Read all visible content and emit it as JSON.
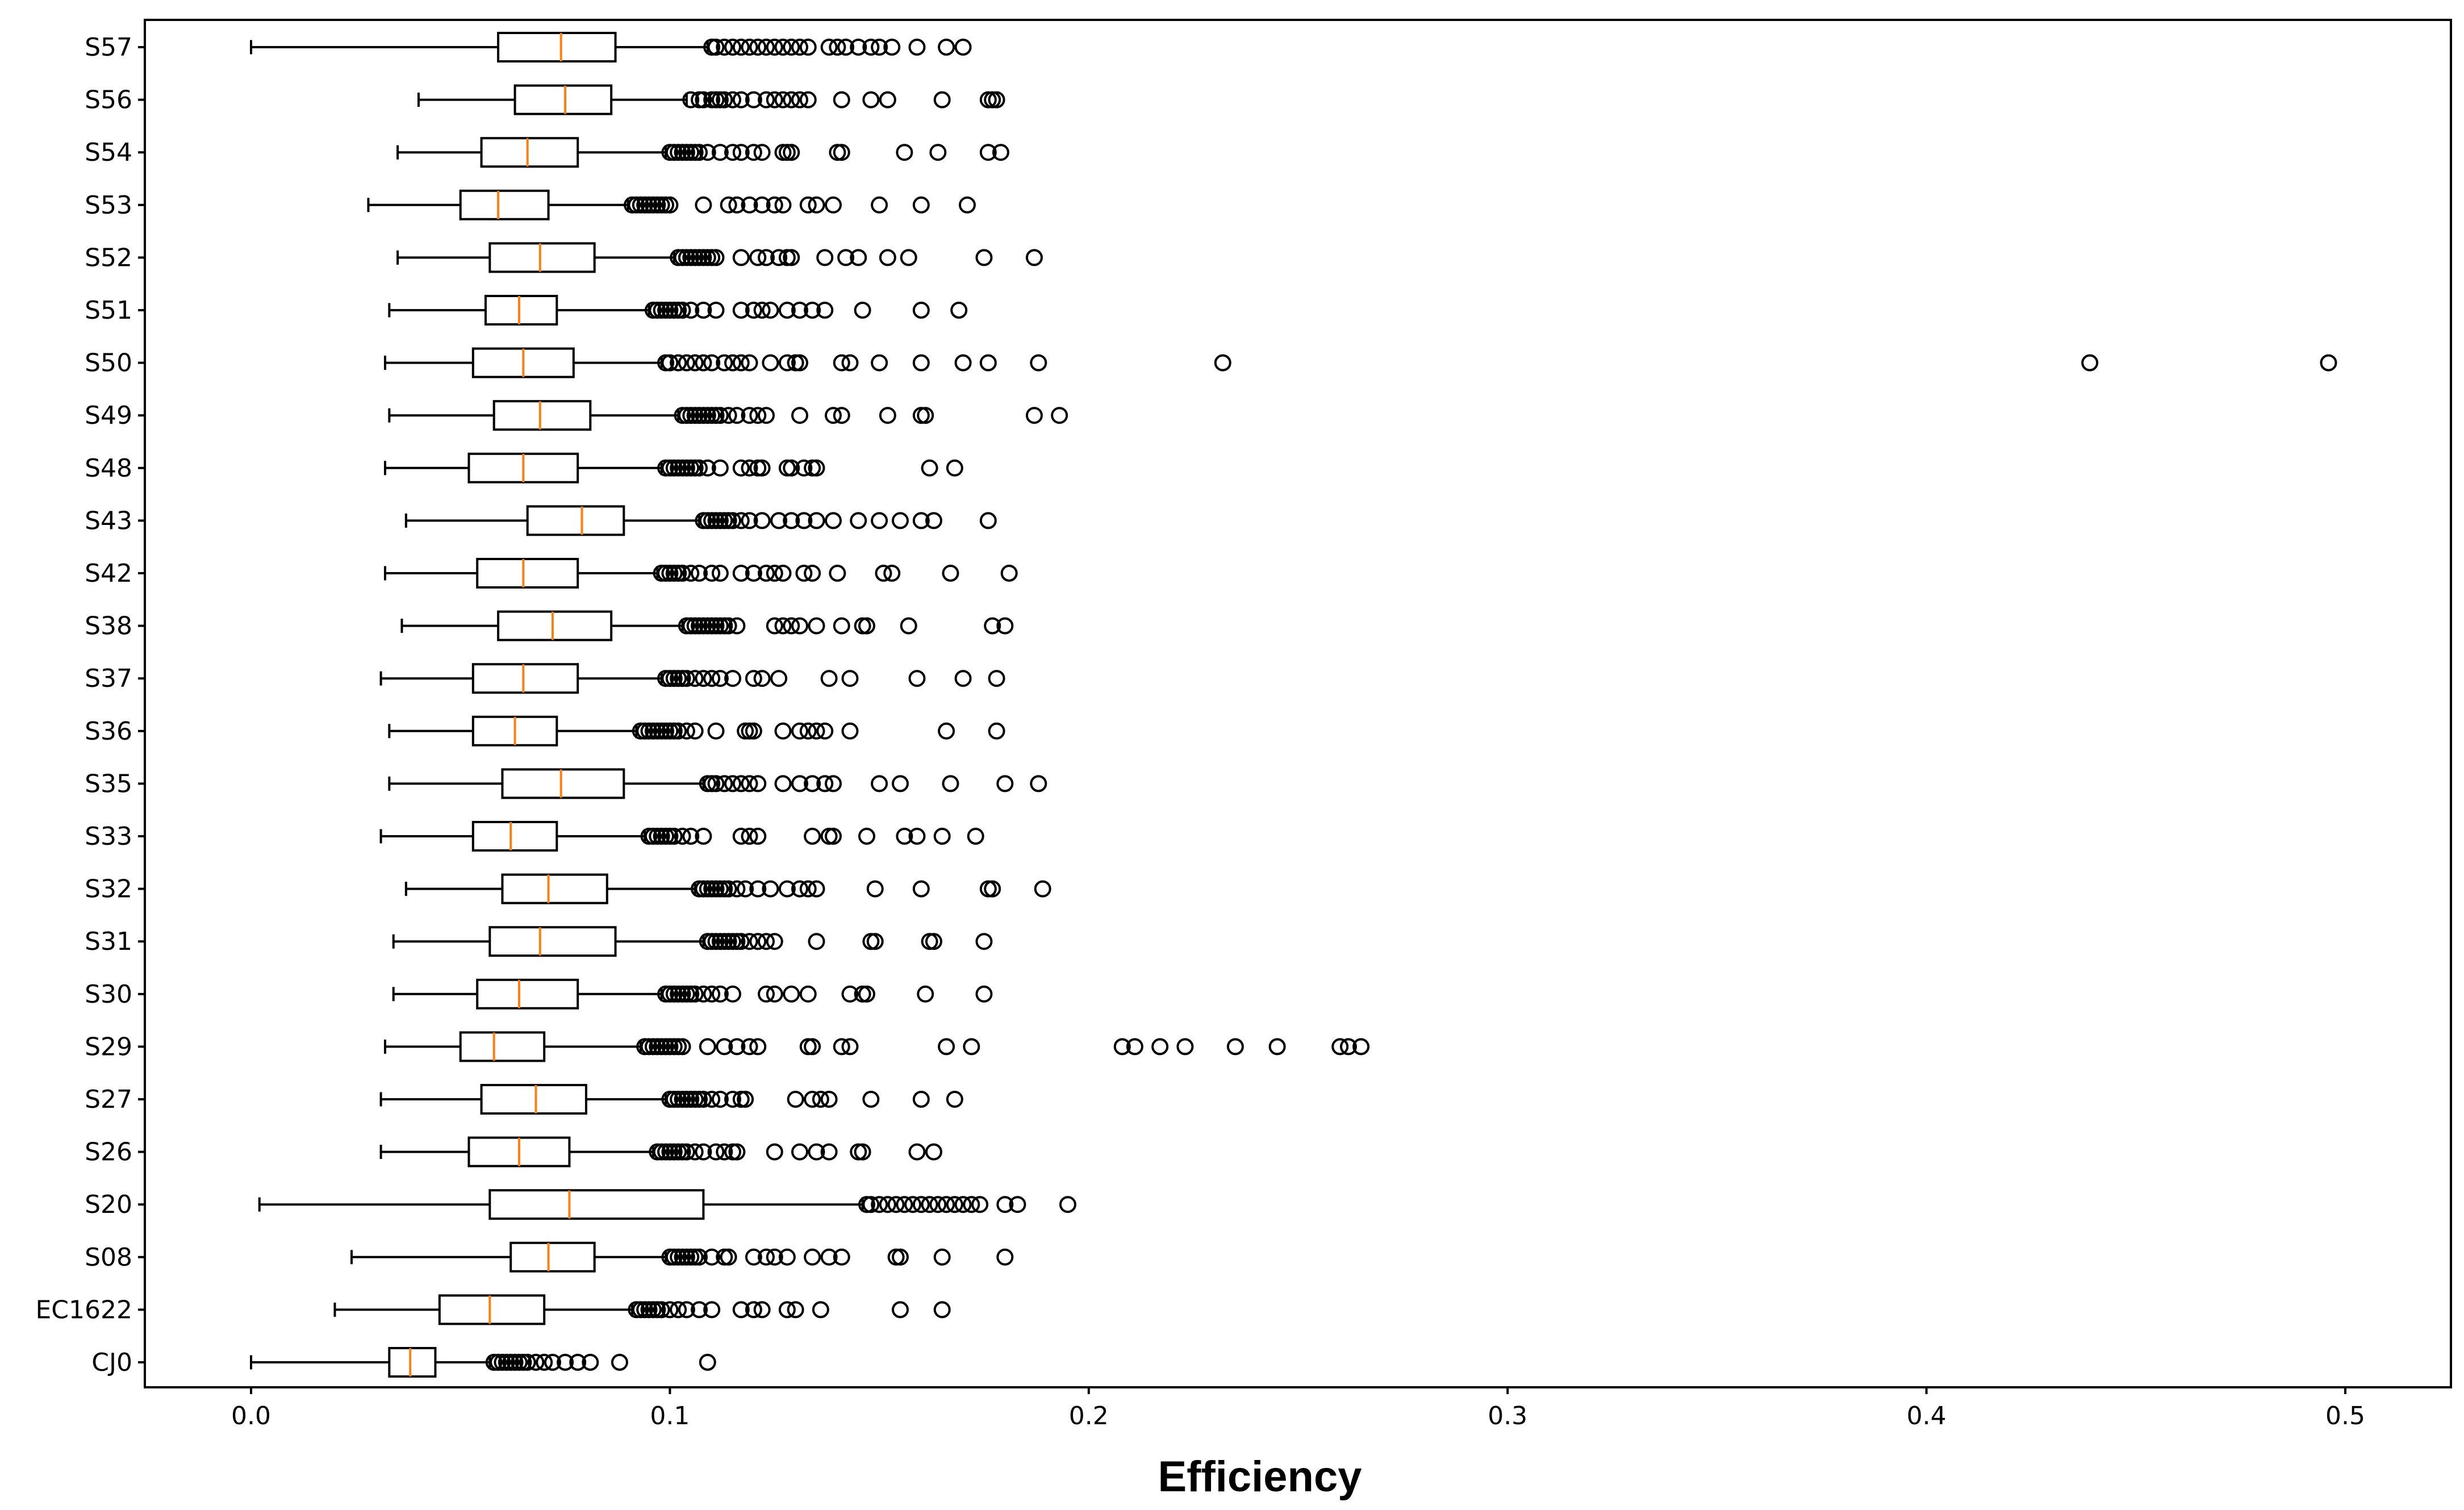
{
  "chart_data": {
    "type": "boxplot",
    "orientation": "horizontal",
    "title": "",
    "xlabel": "Efficiency",
    "ylabel": "",
    "xlim": [
      -0.025,
      0.523
    ],
    "xticks": [
      0.0,
      0.1,
      0.2,
      0.3,
      0.4,
      0.5
    ],
    "xtick_labels": [
      "0.0",
      "0.1",
      "0.2",
      "0.3",
      "0.4",
      "0.5"
    ],
    "grid": false,
    "colors": {
      "box": "#000000",
      "median": "#ff7f0e",
      "flier": "#000000",
      "background": "#ffffff"
    },
    "categories": [
      "S57",
      "S56",
      "S54",
      "S53",
      "S52",
      "S51",
      "S50",
      "S49",
      "S48",
      "S43",
      "S42",
      "S38",
      "S37",
      "S36",
      "S35",
      "S33",
      "S32",
      "S31",
      "S30",
      "S29",
      "S27",
      "S26",
      "S20",
      "S08",
      "EC1622",
      "CJ0"
    ],
    "boxes": [
      {
        "label": "S57",
        "whisker_low": 0.0,
        "q1": 0.059,
        "median": 0.074,
        "q3": 0.087,
        "whisker_high": 0.109,
        "fliers": [
          0.11,
          0.111,
          0.113,
          0.115,
          0.117,
          0.119,
          0.121,
          0.123,
          0.125,
          0.127,
          0.129,
          0.131,
          0.133,
          0.138,
          0.14,
          0.142,
          0.145,
          0.148,
          0.15,
          0.153,
          0.159,
          0.166,
          0.17
        ]
      },
      {
        "label": "S56",
        "whisker_low": 0.04,
        "q1": 0.063,
        "median": 0.075,
        "q3": 0.086,
        "whisker_high": 0.104,
        "fliers": [
          0.105,
          0.107,
          0.108,
          0.11,
          0.111,
          0.112,
          0.113,
          0.115,
          0.117,
          0.12,
          0.123,
          0.125,
          0.127,
          0.129,
          0.131,
          0.133,
          0.141,
          0.148,
          0.152,
          0.165,
          0.176,
          0.177,
          0.178
        ]
      },
      {
        "label": "S54",
        "whisker_low": 0.035,
        "q1": 0.055,
        "median": 0.066,
        "q3": 0.078,
        "whisker_high": 0.099,
        "fliers": [
          0.1,
          0.101,
          0.102,
          0.103,
          0.104,
          0.105,
          0.106,
          0.107,
          0.109,
          0.112,
          0.115,
          0.117,
          0.12,
          0.122,
          0.127,
          0.128,
          0.129,
          0.14,
          0.141,
          0.156,
          0.164,
          0.176,
          0.179
        ]
      },
      {
        "label": "S53",
        "whisker_low": 0.028,
        "q1": 0.05,
        "median": 0.059,
        "q3": 0.071,
        "whisker_high": 0.09,
        "fliers": [
          0.091,
          0.092,
          0.093,
          0.094,
          0.095,
          0.096,
          0.097,
          0.098,
          0.099,
          0.1,
          0.108,
          0.114,
          0.116,
          0.119,
          0.122,
          0.125,
          0.127,
          0.133,
          0.135,
          0.139,
          0.15,
          0.16,
          0.171
        ]
      },
      {
        "label": "S52",
        "whisker_low": 0.035,
        "q1": 0.057,
        "median": 0.069,
        "q3": 0.082,
        "whisker_high": 0.101,
        "fliers": [
          0.102,
          0.103,
          0.104,
          0.105,
          0.106,
          0.107,
          0.108,
          0.109,
          0.11,
          0.111,
          0.117,
          0.121,
          0.123,
          0.126,
          0.128,
          0.129,
          0.137,
          0.142,
          0.145,
          0.152,
          0.157,
          0.175,
          0.187
        ]
      },
      {
        "label": "S51",
        "whisker_low": 0.033,
        "q1": 0.056,
        "median": 0.064,
        "q3": 0.073,
        "whisker_high": 0.095,
        "fliers": [
          0.096,
          0.097,
          0.098,
          0.099,
          0.1,
          0.101,
          0.102,
          0.103,
          0.105,
          0.108,
          0.111,
          0.117,
          0.12,
          0.122,
          0.124,
          0.128,
          0.131,
          0.134,
          0.137,
          0.146,
          0.16,
          0.169
        ]
      },
      {
        "label": "S50",
        "whisker_low": 0.032,
        "q1": 0.053,
        "median": 0.065,
        "q3": 0.077,
        "whisker_high": 0.098,
        "fliers": [
          0.099,
          0.1,
          0.102,
          0.104,
          0.106,
          0.108,
          0.11,
          0.113,
          0.115,
          0.117,
          0.119,
          0.124,
          0.128,
          0.13,
          0.131,
          0.141,
          0.143,
          0.15,
          0.16,
          0.17,
          0.176,
          0.188,
          0.232,
          0.439,
          0.496
        ]
      },
      {
        "label": "S49",
        "whisker_low": 0.033,
        "q1": 0.058,
        "median": 0.069,
        "q3": 0.081,
        "whisker_high": 0.102,
        "fliers": [
          0.103,
          0.104,
          0.105,
          0.106,
          0.107,
          0.108,
          0.109,
          0.11,
          0.111,
          0.112,
          0.114,
          0.116,
          0.119,
          0.121,
          0.123,
          0.131,
          0.139,
          0.141,
          0.152,
          0.16,
          0.161,
          0.187,
          0.193
        ]
      },
      {
        "label": "S48",
        "whisker_low": 0.032,
        "q1": 0.052,
        "median": 0.065,
        "q3": 0.078,
        "whisker_high": 0.098,
        "fliers": [
          0.099,
          0.1,
          0.101,
          0.102,
          0.103,
          0.104,
          0.105,
          0.106,
          0.107,
          0.109,
          0.112,
          0.117,
          0.119,
          0.121,
          0.122,
          0.128,
          0.129,
          0.132,
          0.134,
          0.135,
          0.162,
          0.168
        ]
      },
      {
        "label": "S43",
        "whisker_low": 0.037,
        "q1": 0.066,
        "median": 0.079,
        "q3": 0.089,
        "whisker_high": 0.107,
        "fliers": [
          0.108,
          0.109,
          0.11,
          0.111,
          0.112,
          0.113,
          0.114,
          0.115,
          0.117,
          0.119,
          0.122,
          0.126,
          0.129,
          0.132,
          0.135,
          0.139,
          0.145,
          0.15,
          0.155,
          0.16,
          0.163,
          0.176
        ]
      },
      {
        "label": "S42",
        "whisker_low": 0.032,
        "q1": 0.054,
        "median": 0.065,
        "q3": 0.078,
        "whisker_high": 0.097,
        "fliers": [
          0.098,
          0.099,
          0.1,
          0.101,
          0.102,
          0.103,
          0.105,
          0.107,
          0.11,
          0.112,
          0.117,
          0.12,
          0.123,
          0.125,
          0.127,
          0.132,
          0.134,
          0.14,
          0.151,
          0.153,
          0.167,
          0.181
        ]
      },
      {
        "label": "S38",
        "whisker_low": 0.036,
        "q1": 0.059,
        "median": 0.072,
        "q3": 0.086,
        "whisker_high": 0.103,
        "fliers": [
          0.104,
          0.105,
          0.106,
          0.107,
          0.108,
          0.109,
          0.11,
          0.111,
          0.112,
          0.113,
          0.114,
          0.116,
          0.125,
          0.127,
          0.129,
          0.131,
          0.135,
          0.141,
          0.146,
          0.147,
          0.157,
          0.177,
          0.18
        ]
      },
      {
        "label": "S37",
        "whisker_low": 0.031,
        "q1": 0.053,
        "median": 0.065,
        "q3": 0.078,
        "whisker_high": 0.098,
        "fliers": [
          0.099,
          0.1,
          0.101,
          0.102,
          0.103,
          0.104,
          0.106,
          0.108,
          0.11,
          0.112,
          0.115,
          0.12,
          0.122,
          0.126,
          0.138,
          0.143,
          0.159,
          0.17,
          0.178
        ]
      },
      {
        "label": "S36",
        "whisker_low": 0.033,
        "q1": 0.053,
        "median": 0.063,
        "q3": 0.073,
        "whisker_high": 0.092,
        "fliers": [
          0.093,
          0.094,
          0.095,
          0.096,
          0.097,
          0.098,
          0.099,
          0.1,
          0.101,
          0.102,
          0.104,
          0.106,
          0.111,
          0.118,
          0.119,
          0.12,
          0.127,
          0.131,
          0.133,
          0.135,
          0.137,
          0.143,
          0.166,
          0.178
        ]
      },
      {
        "label": "S35",
        "whisker_low": 0.033,
        "q1": 0.06,
        "median": 0.074,
        "q3": 0.089,
        "whisker_high": 0.108,
        "fliers": [
          0.109,
          0.11,
          0.111,
          0.113,
          0.115,
          0.117,
          0.119,
          0.121,
          0.127,
          0.131,
          0.134,
          0.137,
          0.139,
          0.15,
          0.155,
          0.167,
          0.18,
          0.188
        ]
      },
      {
        "label": "S33",
        "whisker_low": 0.031,
        "q1": 0.053,
        "median": 0.062,
        "q3": 0.073,
        "whisker_high": 0.094,
        "fliers": [
          0.095,
          0.096,
          0.097,
          0.098,
          0.099,
          0.1,
          0.101,
          0.103,
          0.105,
          0.108,
          0.117,
          0.119,
          0.121,
          0.134,
          0.138,
          0.139,
          0.147,
          0.156,
          0.159,
          0.165,
          0.173
        ]
      },
      {
        "label": "S32",
        "whisker_low": 0.037,
        "q1": 0.06,
        "median": 0.071,
        "q3": 0.085,
        "whisker_high": 0.106,
        "fliers": [
          0.107,
          0.108,
          0.109,
          0.11,
          0.111,
          0.112,
          0.113,
          0.114,
          0.116,
          0.118,
          0.121,
          0.124,
          0.128,
          0.131,
          0.133,
          0.135,
          0.149,
          0.16,
          0.176,
          0.177,
          0.189
        ]
      },
      {
        "label": "S31",
        "whisker_low": 0.034,
        "q1": 0.057,
        "median": 0.069,
        "q3": 0.087,
        "whisker_high": 0.108,
        "fliers": [
          0.109,
          0.11,
          0.111,
          0.112,
          0.113,
          0.114,
          0.115,
          0.116,
          0.117,
          0.119,
          0.121,
          0.123,
          0.125,
          0.135,
          0.148,
          0.149,
          0.162,
          0.163,
          0.175
        ]
      },
      {
        "label": "S30",
        "whisker_low": 0.034,
        "q1": 0.054,
        "median": 0.064,
        "q3": 0.078,
        "whisker_high": 0.098,
        "fliers": [
          0.099,
          0.1,
          0.101,
          0.102,
          0.103,
          0.104,
          0.105,
          0.106,
          0.108,
          0.11,
          0.112,
          0.115,
          0.123,
          0.125,
          0.129,
          0.133,
          0.143,
          0.146,
          0.147,
          0.161,
          0.175
        ]
      },
      {
        "label": "S29",
        "whisker_low": 0.032,
        "q1": 0.05,
        "median": 0.058,
        "q3": 0.07,
        "whisker_high": 0.093,
        "fliers": [
          0.094,
          0.095,
          0.096,
          0.097,
          0.098,
          0.099,
          0.1,
          0.101,
          0.102,
          0.103,
          0.109,
          0.113,
          0.116,
          0.119,
          0.121,
          0.133,
          0.134,
          0.141,
          0.143,
          0.166,
          0.172,
          0.208,
          0.211,
          0.217,
          0.223,
          0.235,
          0.245,
          0.26,
          0.262,
          0.265
        ]
      },
      {
        "label": "S27",
        "whisker_low": 0.031,
        "q1": 0.055,
        "median": 0.068,
        "q3": 0.08,
        "whisker_high": 0.099,
        "fliers": [
          0.1,
          0.101,
          0.102,
          0.103,
          0.104,
          0.105,
          0.106,
          0.107,
          0.108,
          0.11,
          0.112,
          0.115,
          0.117,
          0.118,
          0.13,
          0.134,
          0.136,
          0.138,
          0.148,
          0.16,
          0.168
        ]
      },
      {
        "label": "S26",
        "whisker_low": 0.031,
        "q1": 0.052,
        "median": 0.064,
        "q3": 0.076,
        "whisker_high": 0.096,
        "fliers": [
          0.097,
          0.098,
          0.099,
          0.1,
          0.101,
          0.102,
          0.103,
          0.104,
          0.106,
          0.108,
          0.111,
          0.113,
          0.115,
          0.116,
          0.125,
          0.131,
          0.135,
          0.138,
          0.145,
          0.146,
          0.159,
          0.163
        ]
      },
      {
        "label": "S20",
        "whisker_low": 0.002,
        "q1": 0.057,
        "median": 0.076,
        "q3": 0.108,
        "whisker_high": 0.146,
        "fliers": [
          0.147,
          0.148,
          0.15,
          0.152,
          0.154,
          0.156,
          0.158,
          0.16,
          0.162,
          0.164,
          0.166,
          0.168,
          0.17,
          0.172,
          0.174,
          0.18,
          0.183,
          0.195
        ]
      },
      {
        "label": "S08",
        "whisker_low": 0.024,
        "q1": 0.062,
        "median": 0.071,
        "q3": 0.082,
        "whisker_high": 0.099,
        "fliers": [
          0.1,
          0.101,
          0.102,
          0.103,
          0.104,
          0.105,
          0.106,
          0.107,
          0.11,
          0.113,
          0.114,
          0.12,
          0.123,
          0.125,
          0.128,
          0.134,
          0.138,
          0.141,
          0.154,
          0.155,
          0.165,
          0.18
        ]
      },
      {
        "label": "EC1622",
        "whisker_low": 0.02,
        "q1": 0.045,
        "median": 0.057,
        "q3": 0.07,
        "whisker_high": 0.091,
        "fliers": [
          0.092,
          0.093,
          0.094,
          0.095,
          0.096,
          0.097,
          0.098,
          0.1,
          0.102,
          0.104,
          0.107,
          0.11,
          0.117,
          0.12,
          0.122,
          0.128,
          0.13,
          0.136,
          0.155,
          0.165
        ]
      },
      {
        "label": "CJ0",
        "whisker_low": 0.0,
        "q1": 0.033,
        "median": 0.038,
        "q3": 0.044,
        "whisker_high": 0.057,
        "fliers": [
          0.058,
          0.059,
          0.06,
          0.061,
          0.062,
          0.063,
          0.064,
          0.065,
          0.066,
          0.068,
          0.07,
          0.072,
          0.075,
          0.078,
          0.081,
          0.088,
          0.109
        ]
      }
    ]
  }
}
